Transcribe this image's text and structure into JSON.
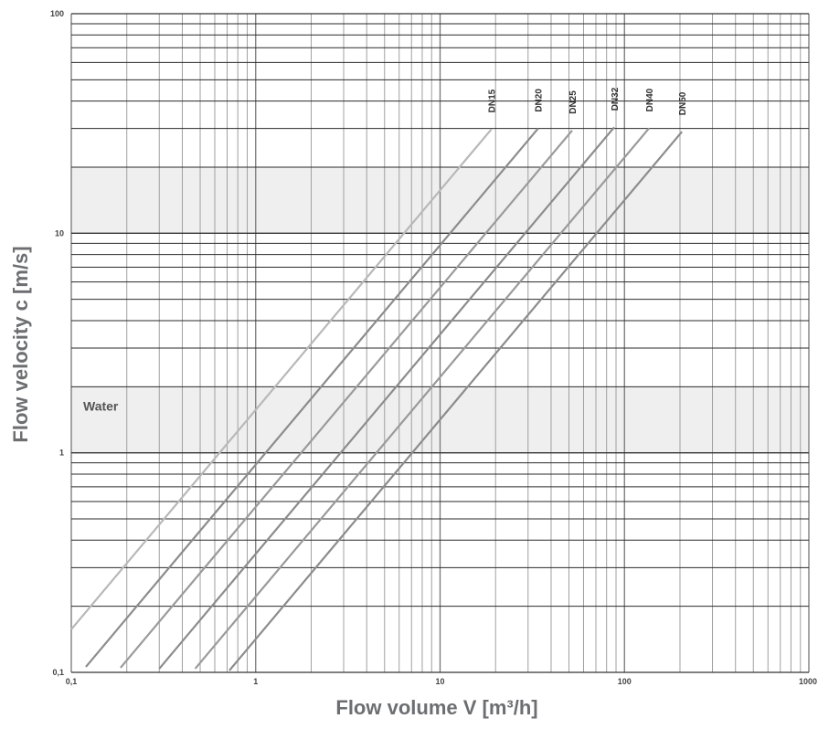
{
  "chart_data": {
    "type": "line",
    "xlabel": "Flow volume V [m³/h]",
    "ylabel": "Flow velocity c [m/s]",
    "x_scale": "log",
    "y_scale": "log",
    "xlim": [
      0.1,
      1000
    ],
    "ylim": [
      0.1,
      100
    ],
    "grid": true,
    "x_tick_labels": [
      "0,1",
      "1",
      "10",
      "100",
      "1000"
    ],
    "y_tick_labels": [
      "0,1",
      "1",
      "10",
      "100"
    ],
    "bands": [
      {
        "label": "Water",
        "y_range": [
          1,
          2
        ]
      },
      {
        "label": "",
        "y_range": [
          10,
          20
        ]
      }
    ],
    "series": [
      {
        "name": "DN15",
        "x": [
          0.1,
          19
        ],
        "y": [
          0.157,
          29.8
        ],
        "color": "#b8b8b8"
      },
      {
        "name": "DN20",
        "x": [
          0.12,
          34
        ],
        "y": [
          0.106,
          30.0
        ],
        "color": "#8c8c8c"
      },
      {
        "name": "DN25",
        "x": [
          0.185,
          52
        ],
        "y": [
          0.105,
          29.4
        ],
        "color": "#9a9a9a"
      },
      {
        "name": "DN32",
        "x": [
          0.3,
          88
        ],
        "y": [
          0.104,
          30.4
        ],
        "color": "#8c8c8c"
      },
      {
        "name": "DN40",
        "x": [
          0.47,
          136
        ],
        "y": [
          0.104,
          30.1
        ],
        "color": "#9a9a9a"
      },
      {
        "name": "DN50",
        "x": [
          0.72,
          205
        ],
        "y": [
          0.102,
          29.0
        ],
        "color": "#8c8c8c"
      }
    ]
  }
}
